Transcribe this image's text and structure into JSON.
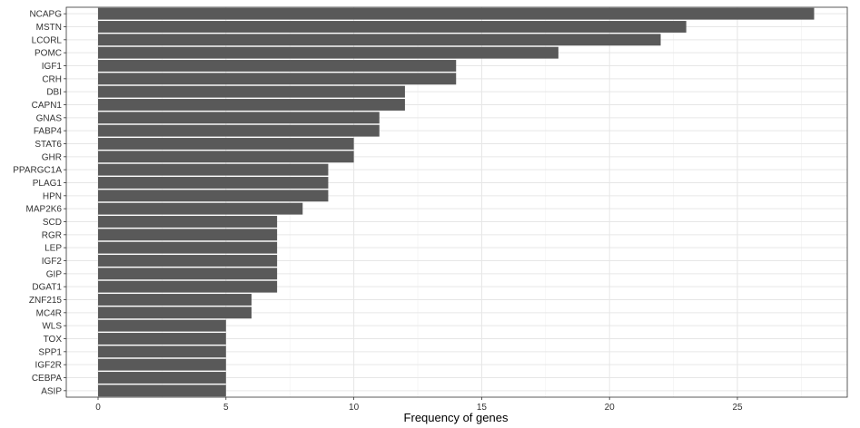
{
  "chart_data": {
    "type": "bar",
    "orientation": "horizontal",
    "title": "",
    "xlabel": "Frequency of genes",
    "ylabel": "",
    "xlim": [
      0,
      29
    ],
    "xticks": [
      0,
      5,
      10,
      15,
      20,
      25
    ],
    "grid": true,
    "bar_color": "#595959",
    "categories": [
      "NCAPG",
      "MSTN",
      "LCORL",
      "POMC",
      "IGF1",
      "CRH",
      "DBI",
      "CAPN1",
      "GNAS",
      "FABP4",
      "STAT6",
      "GHR",
      "PPARGC1A",
      "PLAG1",
      "HPN",
      "MAP2K6",
      "SCD",
      "RGR",
      "LEP",
      "IGF2",
      "GIP",
      "DGAT1",
      "ZNF215",
      "MC4R",
      "WLS",
      "TOX",
      "SPP1",
      "IGF2R",
      "CEBPA",
      "ASIP"
    ],
    "values": [
      28,
      23,
      22,
      18,
      14,
      14,
      12,
      12,
      11,
      11,
      10,
      10,
      9,
      9,
      9,
      8,
      7,
      7,
      7,
      7,
      7,
      7,
      6,
      6,
      5,
      5,
      5,
      5,
      5,
      5
    ]
  }
}
